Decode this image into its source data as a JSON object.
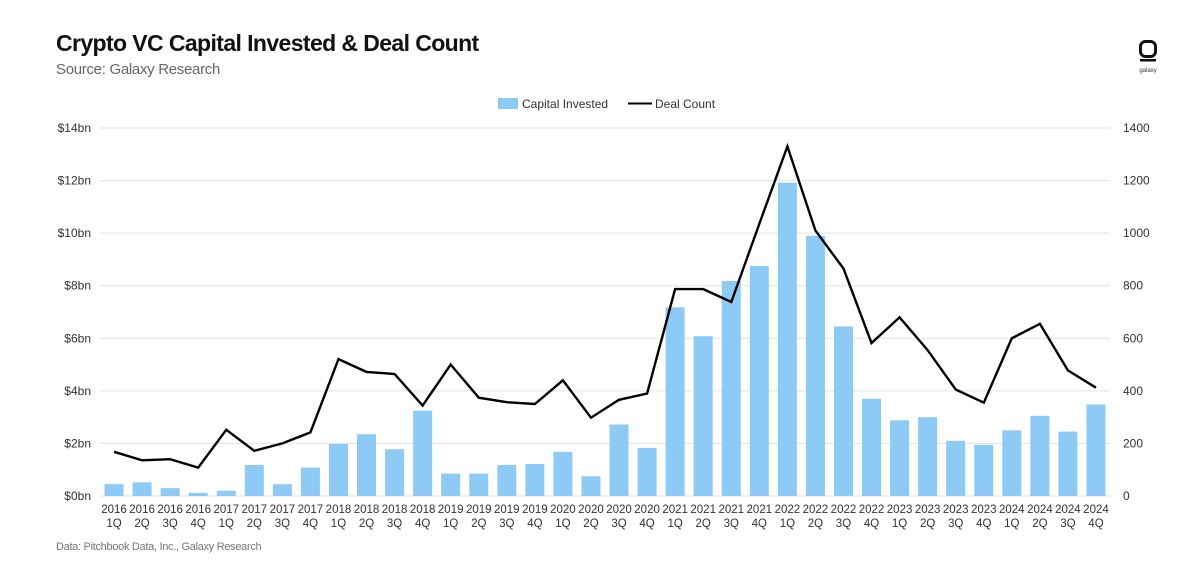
{
  "header": {
    "title": "Crypto VC Capital Invested & Deal Count",
    "subtitle": "Source: Galaxy Research"
  },
  "footer": {
    "note": "Data: Pitchbook Data, Inc., Galaxy Research"
  },
  "logo": {
    "label": "galaxy"
  },
  "colors": {
    "bar": "#8ecaf6",
    "line": "#000000",
    "grid": "#e3e3e3"
  },
  "chart_data": {
    "type": "bar",
    "title": "Crypto VC Capital Invested & Deal Count",
    "legend_position": "top-center",
    "categories": [
      [
        "2016",
        "1Q"
      ],
      [
        "2016",
        "2Q"
      ],
      [
        "2016",
        "3Q"
      ],
      [
        "2016",
        "4Q"
      ],
      [
        "2017",
        "1Q"
      ],
      [
        "2017",
        "2Q"
      ],
      [
        "2017",
        "3Q"
      ],
      [
        "2017",
        "4Q"
      ],
      [
        "2018",
        "1Q"
      ],
      [
        "2018",
        "2Q"
      ],
      [
        "2018",
        "3Q"
      ],
      [
        "2018",
        "4Q"
      ],
      [
        "2019",
        "1Q"
      ],
      [
        "2019",
        "2Q"
      ],
      [
        "2019",
        "3Q"
      ],
      [
        "2019",
        "4Q"
      ],
      [
        "2020",
        "1Q"
      ],
      [
        "2020",
        "2Q"
      ],
      [
        "2020",
        "3Q"
      ],
      [
        "2020",
        "4Q"
      ],
      [
        "2021",
        "1Q"
      ],
      [
        "2021",
        "2Q"
      ],
      [
        "2021",
        "3Q"
      ],
      [
        "2021",
        "4Q"
      ],
      [
        "2022",
        "1Q"
      ],
      [
        "2022",
        "2Q"
      ],
      [
        "2022",
        "3Q"
      ],
      [
        "2022",
        "4Q"
      ],
      [
        "2023",
        "1Q"
      ],
      [
        "2023",
        "2Q"
      ],
      [
        "2023",
        "3Q"
      ],
      [
        "2023",
        "4Q"
      ],
      [
        "2024",
        "1Q"
      ],
      [
        "2024",
        "2Q"
      ],
      [
        "2024",
        "3Q"
      ],
      [
        "2024",
        "4Q"
      ]
    ],
    "series": [
      {
        "name": "Capital Invested",
        "kind": "bar",
        "axis": "left",
        "values": [
          0.45,
          0.52,
          0.3,
          0.12,
          0.2,
          1.18,
          0.45,
          1.08,
          1.98,
          2.35,
          1.78,
          3.25,
          0.85,
          0.85,
          1.18,
          1.22,
          1.68,
          0.75,
          2.72,
          1.83,
          7.18,
          6.08,
          8.18,
          8.75,
          11.92,
          9.9,
          6.45,
          3.7,
          2.88,
          3.0,
          2.1,
          1.95,
          2.5,
          3.05,
          2.45,
          3.48
        ]
      },
      {
        "name": "Deal Count",
        "kind": "line",
        "axis": "right",
        "values": [
          168,
          136,
          140,
          108,
          252,
          172,
          200,
          242,
          521,
          472,
          464,
          344,
          500,
          374,
          357,
          350,
          440,
          298,
          366,
          390,
          787,
          787,
          738,
          1035,
          1330,
          1010,
          865,
          582,
          680,
          555,
          405,
          355,
          600,
          655,
          478,
          412
        ]
      }
    ],
    "y_left": {
      "range": [
        0,
        14
      ],
      "ticks": [
        0,
        2,
        4,
        6,
        8,
        10,
        12,
        14
      ],
      "tick_labels": [
        "$0bn",
        "$2bn",
        "$4bn",
        "$6bn",
        "$8bn",
        "$10bn",
        "$12bn",
        "$14bn"
      ]
    },
    "y_right": {
      "range": [
        0,
        1400
      ],
      "ticks": [
        0,
        200,
        400,
        600,
        800,
        1000,
        1200,
        1400
      ],
      "tick_labels": [
        "0",
        "200",
        "400",
        "600",
        "800",
        "1000",
        "1200",
        "1400"
      ]
    },
    "grid": true
  }
}
